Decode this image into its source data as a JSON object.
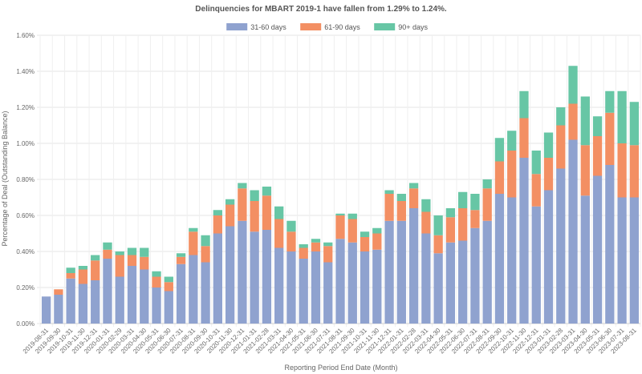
{
  "chart_data": {
    "type": "bar",
    "stacked": true,
    "title": "Delinquencies for MBART 2019-1 have fallen from 1.29% to 1.24%.",
    "xlabel": "Reporting Period End Date (Month)",
    "ylabel": "Percentage of Deal (Outstanding Balance)",
    "ylim": [
      0,
      1.6
    ],
    "yticks": [
      "0.00%",
      "0.20%",
      "0.40%",
      "0.60%",
      "0.80%",
      "1.00%",
      "1.20%",
      "1.40%",
      "1.60%"
    ],
    "ytick_values": [
      0,
      0.2,
      0.4,
      0.6,
      0.8,
      1.0,
      1.2,
      1.4,
      1.6
    ],
    "legend_position": "top-center",
    "categories": [
      "2019-08-31",
      "2019-09-30",
      "2019-10-31",
      "2019-11-30",
      "2019-12-31",
      "2020-01-31",
      "2020-02-29",
      "2020-03-31",
      "2020-04-30",
      "2020-05-31",
      "2020-06-30",
      "2020-07-31",
      "2020-08-31",
      "2020-09-30",
      "2020-10-31",
      "2020-11-30",
      "2020-12-31",
      "2021-01-31",
      "2021-02-28",
      "2021-03-31",
      "2021-04-30",
      "2021-05-31",
      "2021-06-30",
      "2021-07-31",
      "2021-08-31",
      "2021-09-30",
      "2021-10-31",
      "2021-11-30",
      "2021-12-31",
      "2022-01-31",
      "2022-02-28",
      "2022-03-31",
      "2022-04-30",
      "2022-05-31",
      "2022-06-30",
      "2022-07-31",
      "2022-08-31",
      "2022-09-30",
      "2022-10-31",
      "2022-11-30",
      "2022-12-31",
      "2023-01-31",
      "2023-02-28",
      "2023-03-31",
      "2023-04-30",
      "2023-05-31",
      "2023-06-30",
      "2023-07-31",
      "2023-08-31"
    ],
    "series": [
      {
        "name": "31-60 days",
        "color": "#8fa2cf",
        "values": [
          0.15,
          0.16,
          0.25,
          0.22,
          0.24,
          0.36,
          0.26,
          0.32,
          0.3,
          0.2,
          0.18,
          0.33,
          0.38,
          0.34,
          0.5,
          0.54,
          0.57,
          0.51,
          0.52,
          0.42,
          0.4,
          0.36,
          0.4,
          0.34,
          0.47,
          0.45,
          0.4,
          0.41,
          0.57,
          0.57,
          0.64,
          0.5,
          0.39,
          0.45,
          0.46,
          0.53,
          0.57,
          0.72,
          0.7,
          0.92,
          0.65,
          0.74,
          0.86,
          1.02,
          0.71,
          0.82,
          0.88,
          0.7,
          0.7
        ]
      },
      {
        "name": "61-90 days",
        "color": "#f38f63",
        "values": [
          0.0,
          0.03,
          0.03,
          0.08,
          0.11,
          0.05,
          0.12,
          0.06,
          0.07,
          0.06,
          0.05,
          0.04,
          0.13,
          0.09,
          0.1,
          0.12,
          0.18,
          0.17,
          0.19,
          0.16,
          0.11,
          0.06,
          0.05,
          0.09,
          0.13,
          0.13,
          0.08,
          0.09,
          0.15,
          0.11,
          0.11,
          0.12,
          0.1,
          0.14,
          0.18,
          0.1,
          0.18,
          0.18,
          0.26,
          0.22,
          0.18,
          0.18,
          0.24,
          0.2,
          0.28,
          0.22,
          0.29,
          0.3,
          0.29
        ]
      },
      {
        "name": "90+ days",
        "color": "#67c6a5",
        "values": [
          0.0,
          0.0,
          0.03,
          0.02,
          0.03,
          0.04,
          0.02,
          0.04,
          0.05,
          0.03,
          0.03,
          0.02,
          0.02,
          0.06,
          0.03,
          0.03,
          0.03,
          0.06,
          0.05,
          0.07,
          0.06,
          0.02,
          0.02,
          0.02,
          0.01,
          0.03,
          0.03,
          0.03,
          0.02,
          0.04,
          0.03,
          0.07,
          0.11,
          0.05,
          0.09,
          0.09,
          0.05,
          0.13,
          0.11,
          0.15,
          0.13,
          0.14,
          0.1,
          0.21,
          0.27,
          0.11,
          0.12,
          0.29,
          0.24
        ]
      }
    ]
  }
}
